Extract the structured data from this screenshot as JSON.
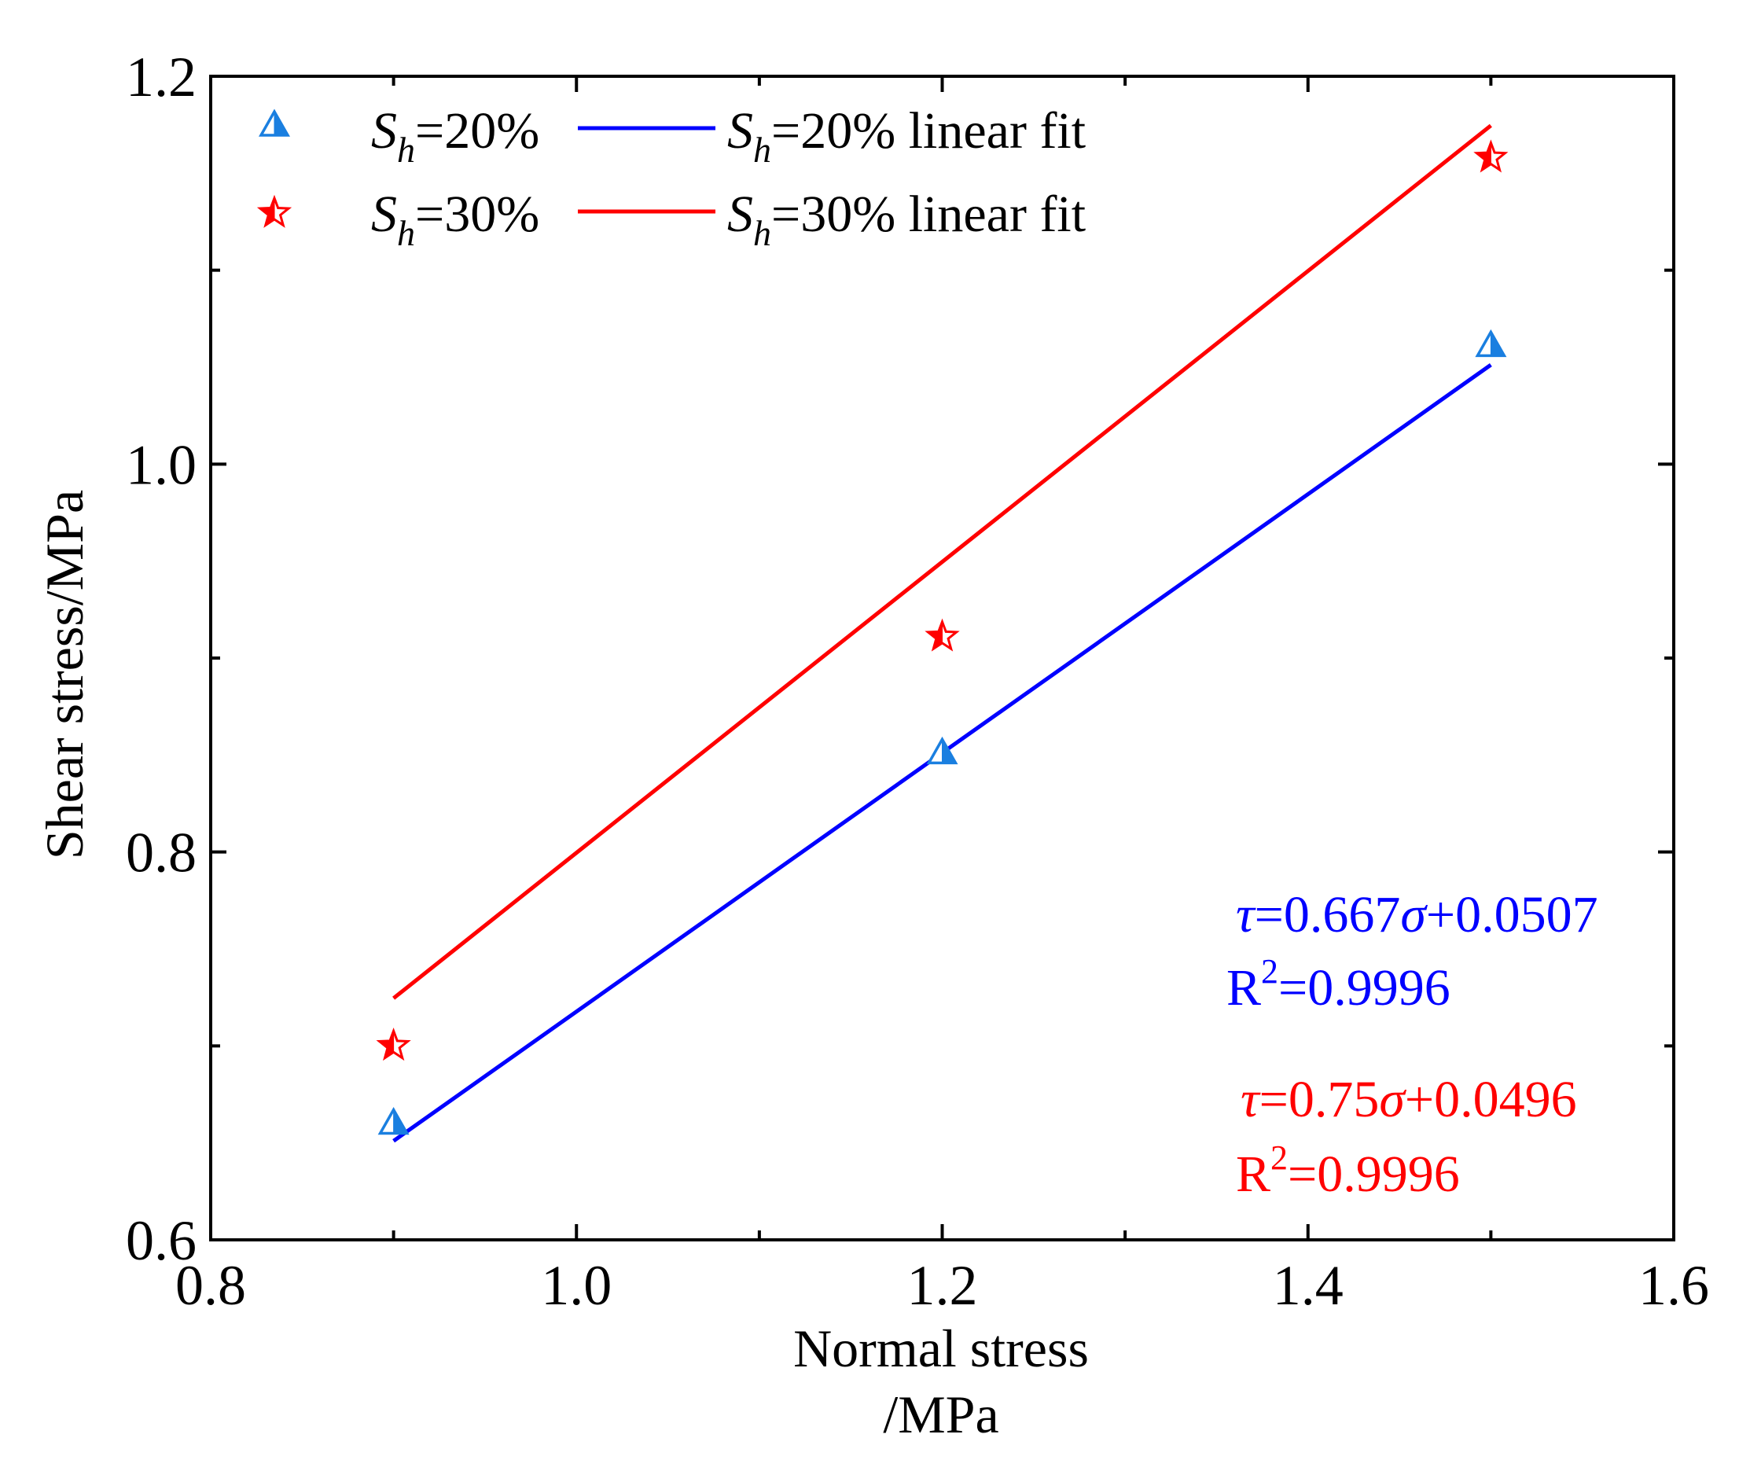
{
  "chart_data": {
    "type": "scatter",
    "xlabel_line1": "Normal stress",
    "xlabel_line2": "/MPa",
    "ylabel": "Shear stress/MPa",
    "xlim": [
      0.8,
      1.6
    ],
    "ylim": [
      0.6,
      1.2
    ],
    "x_major_ticks": [
      0.8,
      1.0,
      1.2,
      1.4,
      1.6
    ],
    "x_minor_ticks": [
      0.9,
      1.1,
      1.3,
      1.5
    ],
    "y_major_ticks": [
      0.6,
      0.8,
      1.0,
      1.2
    ],
    "y_minor_ticks": [
      0.7,
      0.9,
      1.1
    ],
    "x_tick_labels": [
      "0.8",
      "1.0",
      "1.2",
      "1.4",
      "1.6"
    ],
    "y_tick_labels": [
      "0.6",
      "0.8",
      "1.0",
      "1.2"
    ],
    "series": [
      {
        "name": "Sh=20%",
        "marker": "triangle",
        "color": "#1a7fe0",
        "x": [
          0.9,
          1.2,
          1.5
        ],
        "y": [
          0.661,
          0.852,
          1.062
        ],
        "fit": {
          "slope": 0.667,
          "intercept": 0.0507,
          "x_range": [
            0.9,
            1.5
          ],
          "color": "#0000ff"
        },
        "legend_symbol": {
          "var": "S",
          "sub": "h",
          "rest": "=20%"
        },
        "legend_fit": {
          "var": "S",
          "sub": "h",
          "rest": "=20% linear fit"
        },
        "equation": {
          "tau": "τ",
          "mid": "=0.667",
          "sigma": "σ",
          "end": "+0.0507",
          "r2_pre": "R",
          "r2_sup": "2",
          "r2_val": "=0.9996"
        }
      },
      {
        "name": "Sh=30%",
        "marker": "star",
        "color": "#ff0000",
        "x": [
          0.9,
          1.2,
          1.5
        ],
        "y": [
          0.7,
          0.911,
          1.158
        ],
        "fit": {
          "slope": 0.75,
          "intercept": 0.0496,
          "x_range": [
            0.9,
            1.5
          ],
          "color": "#ff0000"
        },
        "legend_symbol": {
          "var": "S",
          "sub": "h",
          "rest": "=30%"
        },
        "legend_fit": {
          "var": "S",
          "sub": "h",
          "rest": "=30% linear fit"
        },
        "equation": {
          "tau": "τ",
          "mid": "=0.75",
          "sigma": "σ",
          "end": "+0.0496",
          "r2_pre": "R",
          "r2_sup": "2",
          "r2_val": "=0.9996"
        }
      }
    ]
  }
}
